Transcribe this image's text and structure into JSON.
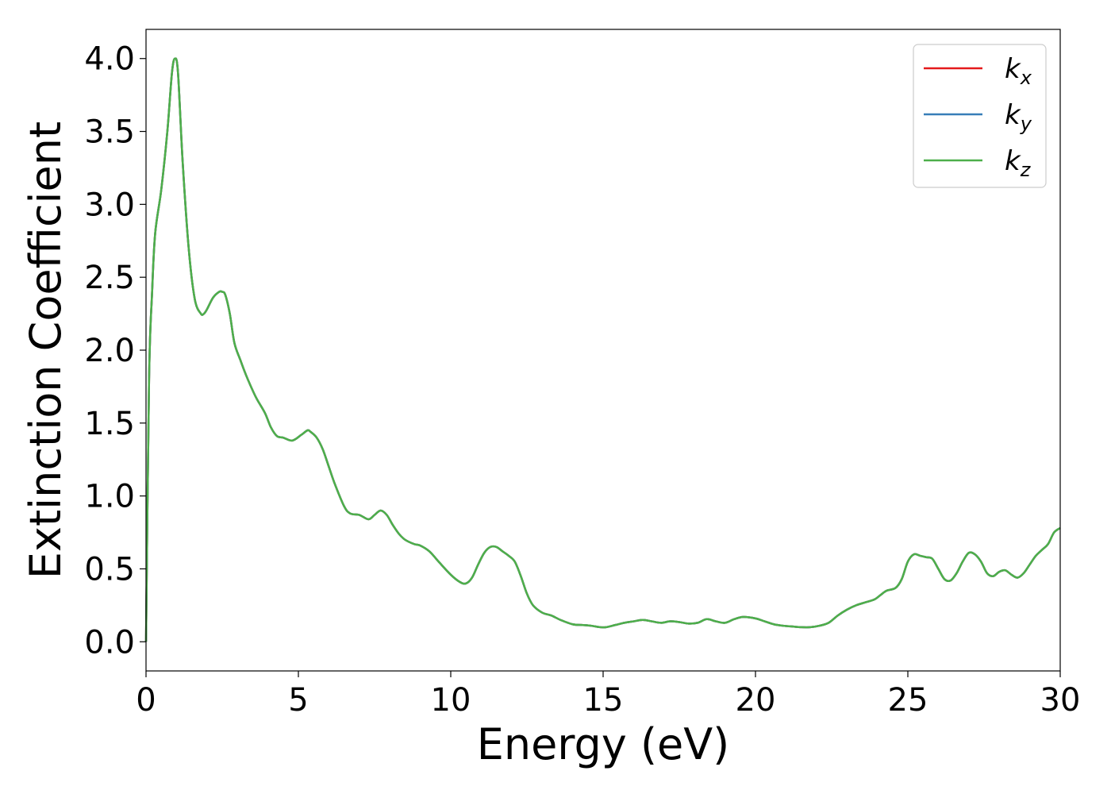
{
  "chart_data": {
    "type": "line",
    "xlabel": "Energy (eV)",
    "ylabel": "Extinction Coefficient",
    "xlim": [
      0,
      30
    ],
    "ylim": [
      -0.2,
      4.2
    ],
    "xticks": [
      0,
      5,
      10,
      15,
      20,
      25,
      30
    ],
    "xtick_labels": [
      "0",
      "5",
      "10",
      "15",
      "20",
      "25",
      "30"
    ],
    "yticks": [
      0.0,
      0.5,
      1.0,
      1.5,
      2.0,
      2.5,
      3.0,
      3.5,
      4.0
    ],
    "ytick_labels": [
      "0.0",
      "0.5",
      "1.0",
      "1.5",
      "2.0",
      "2.5",
      "3.0",
      "3.5",
      "4.0"
    ],
    "grid": false,
    "legend_position": "top-right",
    "x": [
      0.0,
      0.1,
      0.2,
      0.3,
      0.5,
      0.7,
      0.85,
      0.95,
      1.05,
      1.2,
      1.4,
      1.6,
      1.8,
      1.9,
      2.0,
      2.2,
      2.4,
      2.5,
      2.6,
      2.75,
      2.9,
      3.1,
      3.3,
      3.6,
      3.9,
      4.1,
      4.3,
      4.5,
      4.8,
      5.1,
      5.3,
      5.4,
      5.6,
      5.8,
      6.0,
      6.2,
      6.5,
      6.7,
      7.0,
      7.3,
      7.5,
      7.7,
      7.9,
      8.1,
      8.3,
      8.5,
      8.8,
      9.0,
      9.3,
      9.6,
      10.0,
      10.3,
      10.5,
      10.7,
      10.9,
      11.1,
      11.3,
      11.5,
      11.7,
      11.9,
      12.1,
      12.3,
      12.5,
      12.7,
      13.0,
      13.3,
      13.6,
      14.0,
      14.3,
      14.6,
      14.9,
      15.1,
      15.4,
      15.7,
      16.0,
      16.3,
      16.6,
      16.9,
      17.2,
      17.5,
      17.8,
      18.1,
      18.4,
      18.7,
      19.0,
      19.3,
      19.6,
      20.0,
      20.3,
      20.6,
      20.9,
      21.2,
      21.5,
      21.8,
      22.1,
      22.4,
      22.7,
      23.0,
      23.3,
      23.6,
      23.9,
      24.1,
      24.3,
      24.6,
      24.8,
      25.0,
      25.2,
      25.4,
      25.6,
      25.8,
      26.0,
      26.2,
      26.4,
      26.6,
      26.8,
      27.0,
      27.2,
      27.4,
      27.6,
      27.8,
      28.0,
      28.2,
      28.4,
      28.6,
      28.8,
      29.0,
      29.2,
      29.4,
      29.6,
      29.8,
      30.0
    ],
    "series": [
      {
        "name": "k_x",
        "label_base": "k",
        "label_sub": "x",
        "color": "#e41a1c"
      },
      {
        "name": "k_y",
        "label_base": "k",
        "label_sub": "y",
        "color": "#377eb8"
      },
      {
        "name": "k_z",
        "label_base": "k",
        "label_sub": "z",
        "color": "#4daf4a"
      }
    ],
    "shared_values": [
      0.0,
      1.8,
      2.4,
      2.8,
      3.1,
      3.5,
      3.9,
      4.0,
      3.9,
      3.3,
      2.7,
      2.35,
      2.25,
      2.25,
      2.28,
      2.36,
      2.4,
      2.4,
      2.38,
      2.25,
      2.05,
      1.93,
      1.82,
      1.68,
      1.57,
      1.47,
      1.41,
      1.4,
      1.38,
      1.42,
      1.45,
      1.44,
      1.4,
      1.32,
      1.2,
      1.08,
      0.93,
      0.88,
      0.87,
      0.84,
      0.87,
      0.9,
      0.87,
      0.8,
      0.74,
      0.7,
      0.67,
      0.66,
      0.62,
      0.55,
      0.46,
      0.41,
      0.4,
      0.44,
      0.53,
      0.61,
      0.65,
      0.65,
      0.62,
      0.59,
      0.55,
      0.45,
      0.33,
      0.25,
      0.2,
      0.18,
      0.15,
      0.12,
      0.115,
      0.11,
      0.1,
      0.1,
      0.115,
      0.13,
      0.14,
      0.15,
      0.14,
      0.13,
      0.14,
      0.135,
      0.125,
      0.13,
      0.155,
      0.14,
      0.13,
      0.155,
      0.17,
      0.16,
      0.14,
      0.12,
      0.11,
      0.105,
      0.1,
      0.1,
      0.11,
      0.13,
      0.18,
      0.22,
      0.25,
      0.27,
      0.29,
      0.32,
      0.35,
      0.37,
      0.43,
      0.55,
      0.6,
      0.59,
      0.58,
      0.57,
      0.5,
      0.43,
      0.42,
      0.47,
      0.55,
      0.61,
      0.6,
      0.55,
      0.47,
      0.45,
      0.48,
      0.49,
      0.46,
      0.44,
      0.47,
      0.53,
      0.59,
      0.63,
      0.67,
      0.75,
      0.78
    ]
  }
}
